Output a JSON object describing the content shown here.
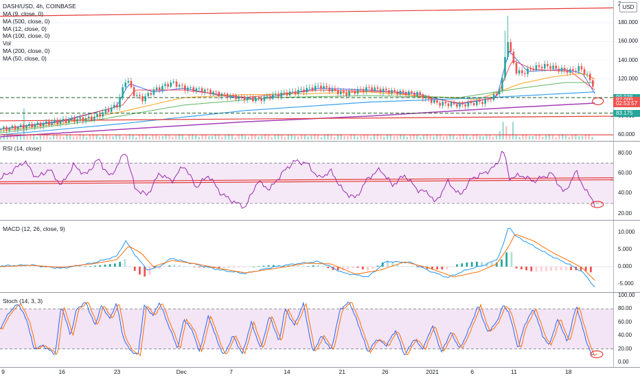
{
  "symbol_title": "DASH/USD, 4h, COINBASE",
  "currency_button": "USD",
  "x_ticks": [
    {
      "label": "9",
      "frac": 0.005
    },
    {
      "label": "16",
      "frac": 0.101
    },
    {
      "label": "23",
      "frac": 0.191
    },
    {
      "label": "Dec",
      "frac": 0.296
    },
    {
      "label": "7",
      "frac": 0.377
    },
    {
      "label": "14",
      "frac": 0.468
    },
    {
      "label": "21",
      "frac": 0.558
    },
    {
      "label": "26",
      "frac": 0.628
    },
    {
      "label": "2021",
      "frac": 0.705
    },
    {
      "label": "6",
      "frac": 0.77
    },
    {
      "label": "11",
      "frac": 0.838
    },
    {
      "label": "18",
      "frac": 0.927
    }
  ],
  "chart_data": [
    {
      "type": "candlestick",
      "name": "price",
      "legend": [
        "MA (9, close, 0)",
        "MA (500, close, 0)",
        "MA (12, close, 0)",
        "MA (100, close, 0)",
        "Vol",
        "MA (200, close, 0)",
        "MA (50, close, 0)"
      ],
      "ylim": [
        55,
        200
      ],
      "y_ticks": [
        "60.000",
        "80.000",
        "100.000",
        "120.000",
        "140.000",
        "160.000",
        "180.000",
        "2"
      ],
      "y_tick_values": [
        60,
        80,
        100,
        120,
        140,
        160,
        180,
        200
      ],
      "price_tags": [
        {
          "text": "99.938",
          "value": 99.938,
          "color": "#26a69a"
        },
        {
          "text": "97.000",
          "value": 97.0,
          "color": "#ef5350"
        },
        {
          "text": "02:53:57",
          "value": 93.4,
          "color": "#ef5350"
        },
        {
          "text": "83.175",
          "value": 83.175,
          "color": "#26a69a"
        }
      ],
      "levels": [
        99.9,
        83.2
      ],
      "close_anchors": [
        [
          0,
          66
        ],
        [
          0.05,
          70
        ],
        [
          0.1,
          75
        ],
        [
          0.15,
          78
        ],
        [
          0.19,
          92
        ],
        [
          0.205,
          122
        ],
        [
          0.215,
          105
        ],
        [
          0.23,
          98
        ],
        [
          0.25,
          108
        ],
        [
          0.28,
          116
        ],
        [
          0.3,
          110
        ],
        [
          0.33,
          108
        ],
        [
          0.36,
          103
        ],
        [
          0.39,
          100
        ],
        [
          0.42,
          98
        ],
        [
          0.45,
          103
        ],
        [
          0.48,
          106
        ],
        [
          0.52,
          112
        ],
        [
          0.56,
          104
        ],
        [
          0.6,
          110
        ],
        [
          0.64,
          106
        ],
        [
          0.68,
          104
        ],
        [
          0.71,
          94
        ],
        [
          0.75,
          92
        ],
        [
          0.79,
          96
        ],
        [
          0.81,
          104
        ],
        [
          0.82,
          124
        ],
        [
          0.825,
          168
        ],
        [
          0.83,
          150
        ],
        [
          0.84,
          128
        ],
        [
          0.85,
          126
        ],
        [
          0.87,
          132
        ],
        [
          0.89,
          134
        ],
        [
          0.91,
          130
        ],
        [
          0.93,
          128
        ],
        [
          0.945,
          132
        ],
        [
          0.955,
          124
        ],
        [
          0.965,
          115
        ],
        [
          0.97,
          97
        ]
      ],
      "ma_anchors": {
        "ma9": [
          [
            0,
            66
          ],
          [
            0.1,
            75
          ],
          [
            0.19,
            90
          ],
          [
            0.21,
            115
          ],
          [
            0.25,
            106
          ],
          [
            0.3,
            110
          ],
          [
            0.36,
            102
          ],
          [
            0.42,
            98
          ],
          [
            0.52,
            110
          ],
          [
            0.6,
            108
          ],
          [
            0.68,
            104
          ],
          [
            0.75,
            93
          ],
          [
            0.81,
            100
          ],
          [
            0.83,
            150
          ],
          [
            0.86,
            128
          ],
          [
            0.92,
            130
          ],
          [
            0.95,
            126
          ],
          [
            0.97,
            104
          ]
        ],
        "ma12": [
          [
            0,
            66
          ],
          [
            0.1,
            74
          ],
          [
            0.2,
            92
          ],
          [
            0.22,
            108
          ],
          [
            0.3,
            108
          ],
          [
            0.4,
            100
          ],
          [
            0.52,
            108
          ],
          [
            0.64,
            106
          ],
          [
            0.75,
            94
          ],
          [
            0.81,
            100
          ],
          [
            0.835,
            140
          ],
          [
            0.87,
            130
          ],
          [
            0.93,
            128
          ],
          [
            0.97,
            108
          ]
        ],
        "ma50": [
          [
            0,
            64
          ],
          [
            0.1,
            72
          ],
          [
            0.2,
            85
          ],
          [
            0.3,
            100
          ],
          [
            0.4,
            103
          ],
          [
            0.5,
            104
          ],
          [
            0.6,
            106
          ],
          [
            0.7,
            101
          ],
          [
            0.78,
            98
          ],
          [
            0.85,
            115
          ],
          [
            0.9,
            122
          ],
          [
            0.95,
            126
          ],
          [
            0.97,
            120
          ]
        ],
        "ma100": [
          [
            0,
            62
          ],
          [
            0.15,
            75
          ],
          [
            0.3,
            92
          ],
          [
            0.45,
            100
          ],
          [
            0.6,
            102
          ],
          [
            0.75,
            100
          ],
          [
            0.85,
            110
          ],
          [
            0.92,
            116
          ],
          [
            0.97,
            116
          ]
        ],
        "ma200": [
          [
            0,
            60
          ],
          [
            0.2,
            72
          ],
          [
            0.4,
            86
          ],
          [
            0.6,
            95
          ],
          [
            0.8,
            100
          ],
          [
            0.97,
            106
          ]
        ],
        "ma500": [
          [
            0,
            58
          ],
          [
            0.2,
            66
          ],
          [
            0.4,
            74
          ],
          [
            0.6,
            80
          ],
          [
            0.8,
            88
          ],
          [
            0.97,
            94
          ]
        ]
      },
      "trendlines": [
        {
          "from": [
            0,
            187
          ],
          "to": [
            1,
            196
          ]
        },
        {
          "from": [
            0,
            60
          ],
          "to": [
            1,
            60
          ]
        },
        {
          "from": [
            0,
            75
          ],
          "to": [
            1,
            80
          ]
        }
      ]
    },
    {
      "type": "line",
      "name": "rsi",
      "legend": "RSI (14, close)",
      "ylim": [
        15,
        90
      ],
      "y_ticks": [
        "80.00",
        "60.00",
        "40.00",
        "20.00"
      ],
      "y_tick_values": [
        80,
        60,
        40,
        20
      ],
      "band": [
        30,
        70
      ],
      "anchors": [
        [
          0,
          55
        ],
        [
          0.02,
          62
        ],
        [
          0.04,
          72
        ],
        [
          0.06,
          55
        ],
        [
          0.08,
          64
        ],
        [
          0.1,
          48
        ],
        [
          0.12,
          68
        ],
        [
          0.14,
          58
        ],
        [
          0.16,
          74
        ],
        [
          0.18,
          56
        ],
        [
          0.205,
          82
        ],
        [
          0.22,
          45
        ],
        [
          0.24,
          38
        ],
        [
          0.26,
          60
        ],
        [
          0.28,
          52
        ],
        [
          0.3,
          68
        ],
        [
          0.32,
          46
        ],
        [
          0.34,
          58
        ],
        [
          0.36,
          40
        ],
        [
          0.38,
          32
        ],
        [
          0.4,
          26
        ],
        [
          0.42,
          52
        ],
        [
          0.44,
          44
        ],
        [
          0.46,
          60
        ],
        [
          0.48,
          72
        ],
        [
          0.5,
          70
        ],
        [
          0.52,
          55
        ],
        [
          0.54,
          62
        ],
        [
          0.56,
          42
        ],
        [
          0.58,
          35
        ],
        [
          0.6,
          55
        ],
        [
          0.62,
          64
        ],
        [
          0.64,
          48
        ],
        [
          0.66,
          58
        ],
        [
          0.68,
          44
        ],
        [
          0.7,
          40
        ],
        [
          0.71,
          30
        ],
        [
          0.73,
          52
        ],
        [
          0.75,
          38
        ],
        [
          0.77,
          55
        ],
        [
          0.79,
          60
        ],
        [
          0.81,
          68
        ],
        [
          0.82,
          84
        ],
        [
          0.825,
          72
        ],
        [
          0.83,
          55
        ],
        [
          0.85,
          58
        ],
        [
          0.87,
          52
        ],
        [
          0.9,
          60
        ],
        [
          0.92,
          40
        ],
        [
          0.94,
          62
        ],
        [
          0.955,
          42
        ],
        [
          0.965,
          36
        ],
        [
          0.97,
          29
        ]
      ],
      "levels": [
        53.5,
        51.5
      ]
    },
    {
      "type": "line",
      "name": "macd",
      "legend": "MACD (12, 26, close, 9)",
      "ylim": [
        -7,
        13
      ],
      "y_ticks": [
        "10.000",
        "5.000",
        "0.000",
        "-5.000"
      ],
      "y_tick_values": [
        10,
        5,
        0,
        -5
      ],
      "macd_anchors": [
        [
          0,
          0.2
        ],
        [
          0.05,
          0.5
        ],
        [
          0.1,
          -0.5
        ],
        [
          0.15,
          1
        ],
        [
          0.19,
          3
        ],
        [
          0.205,
          7.5
        ],
        [
          0.22,
          3.5
        ],
        [
          0.24,
          -1
        ],
        [
          0.26,
          0
        ],
        [
          0.28,
          2.5
        ],
        [
          0.3,
          1.5
        ],
        [
          0.33,
          0.2
        ],
        [
          0.36,
          -1
        ],
        [
          0.4,
          -2
        ],
        [
          0.44,
          -0.3
        ],
        [
          0.48,
          0.8
        ],
        [
          0.52,
          1.5
        ],
        [
          0.56,
          -1.8
        ],
        [
          0.6,
          -3
        ],
        [
          0.63,
          1.5
        ],
        [
          0.67,
          1.2
        ],
        [
          0.7,
          -1.2
        ],
        [
          0.73,
          -3.2
        ],
        [
          0.76,
          -1
        ],
        [
          0.79,
          0.5
        ],
        [
          0.81,
          2
        ],
        [
          0.82,
          6
        ],
        [
          0.83,
          12
        ],
        [
          0.84,
          9
        ],
        [
          0.87,
          6
        ],
        [
          0.9,
          3
        ],
        [
          0.93,
          0.5
        ],
        [
          0.95,
          -1.5
        ],
        [
          0.97,
          -6
        ]
      ],
      "signal_anchors": [
        [
          0,
          0
        ],
        [
          0.05,
          0.4
        ],
        [
          0.1,
          -0.2
        ],
        [
          0.15,
          0.8
        ],
        [
          0.19,
          2
        ],
        [
          0.21,
          6
        ],
        [
          0.23,
          4
        ],
        [
          0.25,
          0
        ],
        [
          0.28,
          1.8
        ],
        [
          0.32,
          0.8
        ],
        [
          0.36,
          -0.6
        ],
        [
          0.4,
          -1.8
        ],
        [
          0.45,
          -0.5
        ],
        [
          0.5,
          1
        ],
        [
          0.54,
          0.8
        ],
        [
          0.58,
          -2.2
        ],
        [
          0.62,
          -1
        ],
        [
          0.66,
          1.4
        ],
        [
          0.7,
          -0.4
        ],
        [
          0.74,
          -3
        ],
        [
          0.78,
          -1.5
        ],
        [
          0.81,
          0.8
        ],
        [
          0.83,
          6
        ],
        [
          0.84,
          9.5
        ],
        [
          0.87,
          7.5
        ],
        [
          0.9,
          4.2
        ],
        [
          0.93,
          1.5
        ],
        [
          0.95,
          -0.4
        ],
        [
          0.97,
          -4
        ]
      ],
      "histogram_count": 120
    },
    {
      "type": "line",
      "name": "stoch",
      "legend": "Stoch (14, 3, 3)",
      "ylim": [
        -5,
        102
      ],
      "y_ticks": [
        "100.00",
        "80.00",
        "60.00",
        "40.00",
        "20.00",
        "0.00"
      ],
      "y_tick_values": [
        100,
        80,
        60,
        40,
        20,
        0
      ],
      "band": [
        20,
        80
      ],
      "anchors": [
        [
          0,
          50
        ],
        [
          0.015,
          75
        ],
        [
          0.03,
          88
        ],
        [
          0.045,
          60
        ],
        [
          0.055,
          20
        ],
        [
          0.07,
          25
        ],
        [
          0.09,
          12
        ],
        [
          0.1,
          85
        ],
        [
          0.115,
          40
        ],
        [
          0.125,
          80
        ],
        [
          0.14,
          90
        ],
        [
          0.155,
          55
        ],
        [
          0.165,
          85
        ],
        [
          0.18,
          65
        ],
        [
          0.19,
          90
        ],
        [
          0.2,
          40
        ],
        [
          0.21,
          20
        ],
        [
          0.225,
          10
        ],
        [
          0.235,
          85
        ],
        [
          0.25,
          70
        ],
        [
          0.26,
          90
        ],
        [
          0.275,
          55
        ],
        [
          0.29,
          20
        ],
        [
          0.3,
          65
        ],
        [
          0.315,
          45
        ],
        [
          0.325,
          15
        ],
        [
          0.34,
          70
        ],
        [
          0.355,
          30
        ],
        [
          0.365,
          10
        ],
        [
          0.38,
          40
        ],
        [
          0.395,
          12
        ],
        [
          0.41,
          60
        ],
        [
          0.425,
          20
        ],
        [
          0.44,
          70
        ],
        [
          0.455,
          30
        ],
        [
          0.465,
          80
        ],
        [
          0.48,
          55
        ],
        [
          0.495,
          88
        ],
        [
          0.51,
          15
        ],
        [
          0.525,
          40
        ],
        [
          0.54,
          18
        ],
        [
          0.555,
          80
        ],
        [
          0.57,
          90
        ],
        [
          0.585,
          55
        ],
        [
          0.6,
          15
        ],
        [
          0.615,
          35
        ],
        [
          0.63,
          25
        ],
        [
          0.645,
          48
        ],
        [
          0.66,
          10
        ],
        [
          0.675,
          35
        ],
        [
          0.69,
          20
        ],
        [
          0.705,
          55
        ],
        [
          0.72,
          15
        ],
        [
          0.735,
          45
        ],
        [
          0.75,
          20
        ],
        [
          0.765,
          50
        ],
        [
          0.78,
          85
        ],
        [
          0.795,
          45
        ],
        [
          0.81,
          60
        ],
        [
          0.82,
          85
        ],
        [
          0.83,
          75
        ],
        [
          0.845,
          20
        ],
        [
          0.855,
          55
        ],
        [
          0.87,
          80
        ],
        [
          0.885,
          40
        ],
        [
          0.895,
          25
        ],
        [
          0.91,
          65
        ],
        [
          0.925,
          30
        ],
        [
          0.94,
          85
        ],
        [
          0.955,
          35
        ],
        [
          0.965,
          10
        ],
        [
          0.97,
          12
        ]
      ]
    }
  ]
}
